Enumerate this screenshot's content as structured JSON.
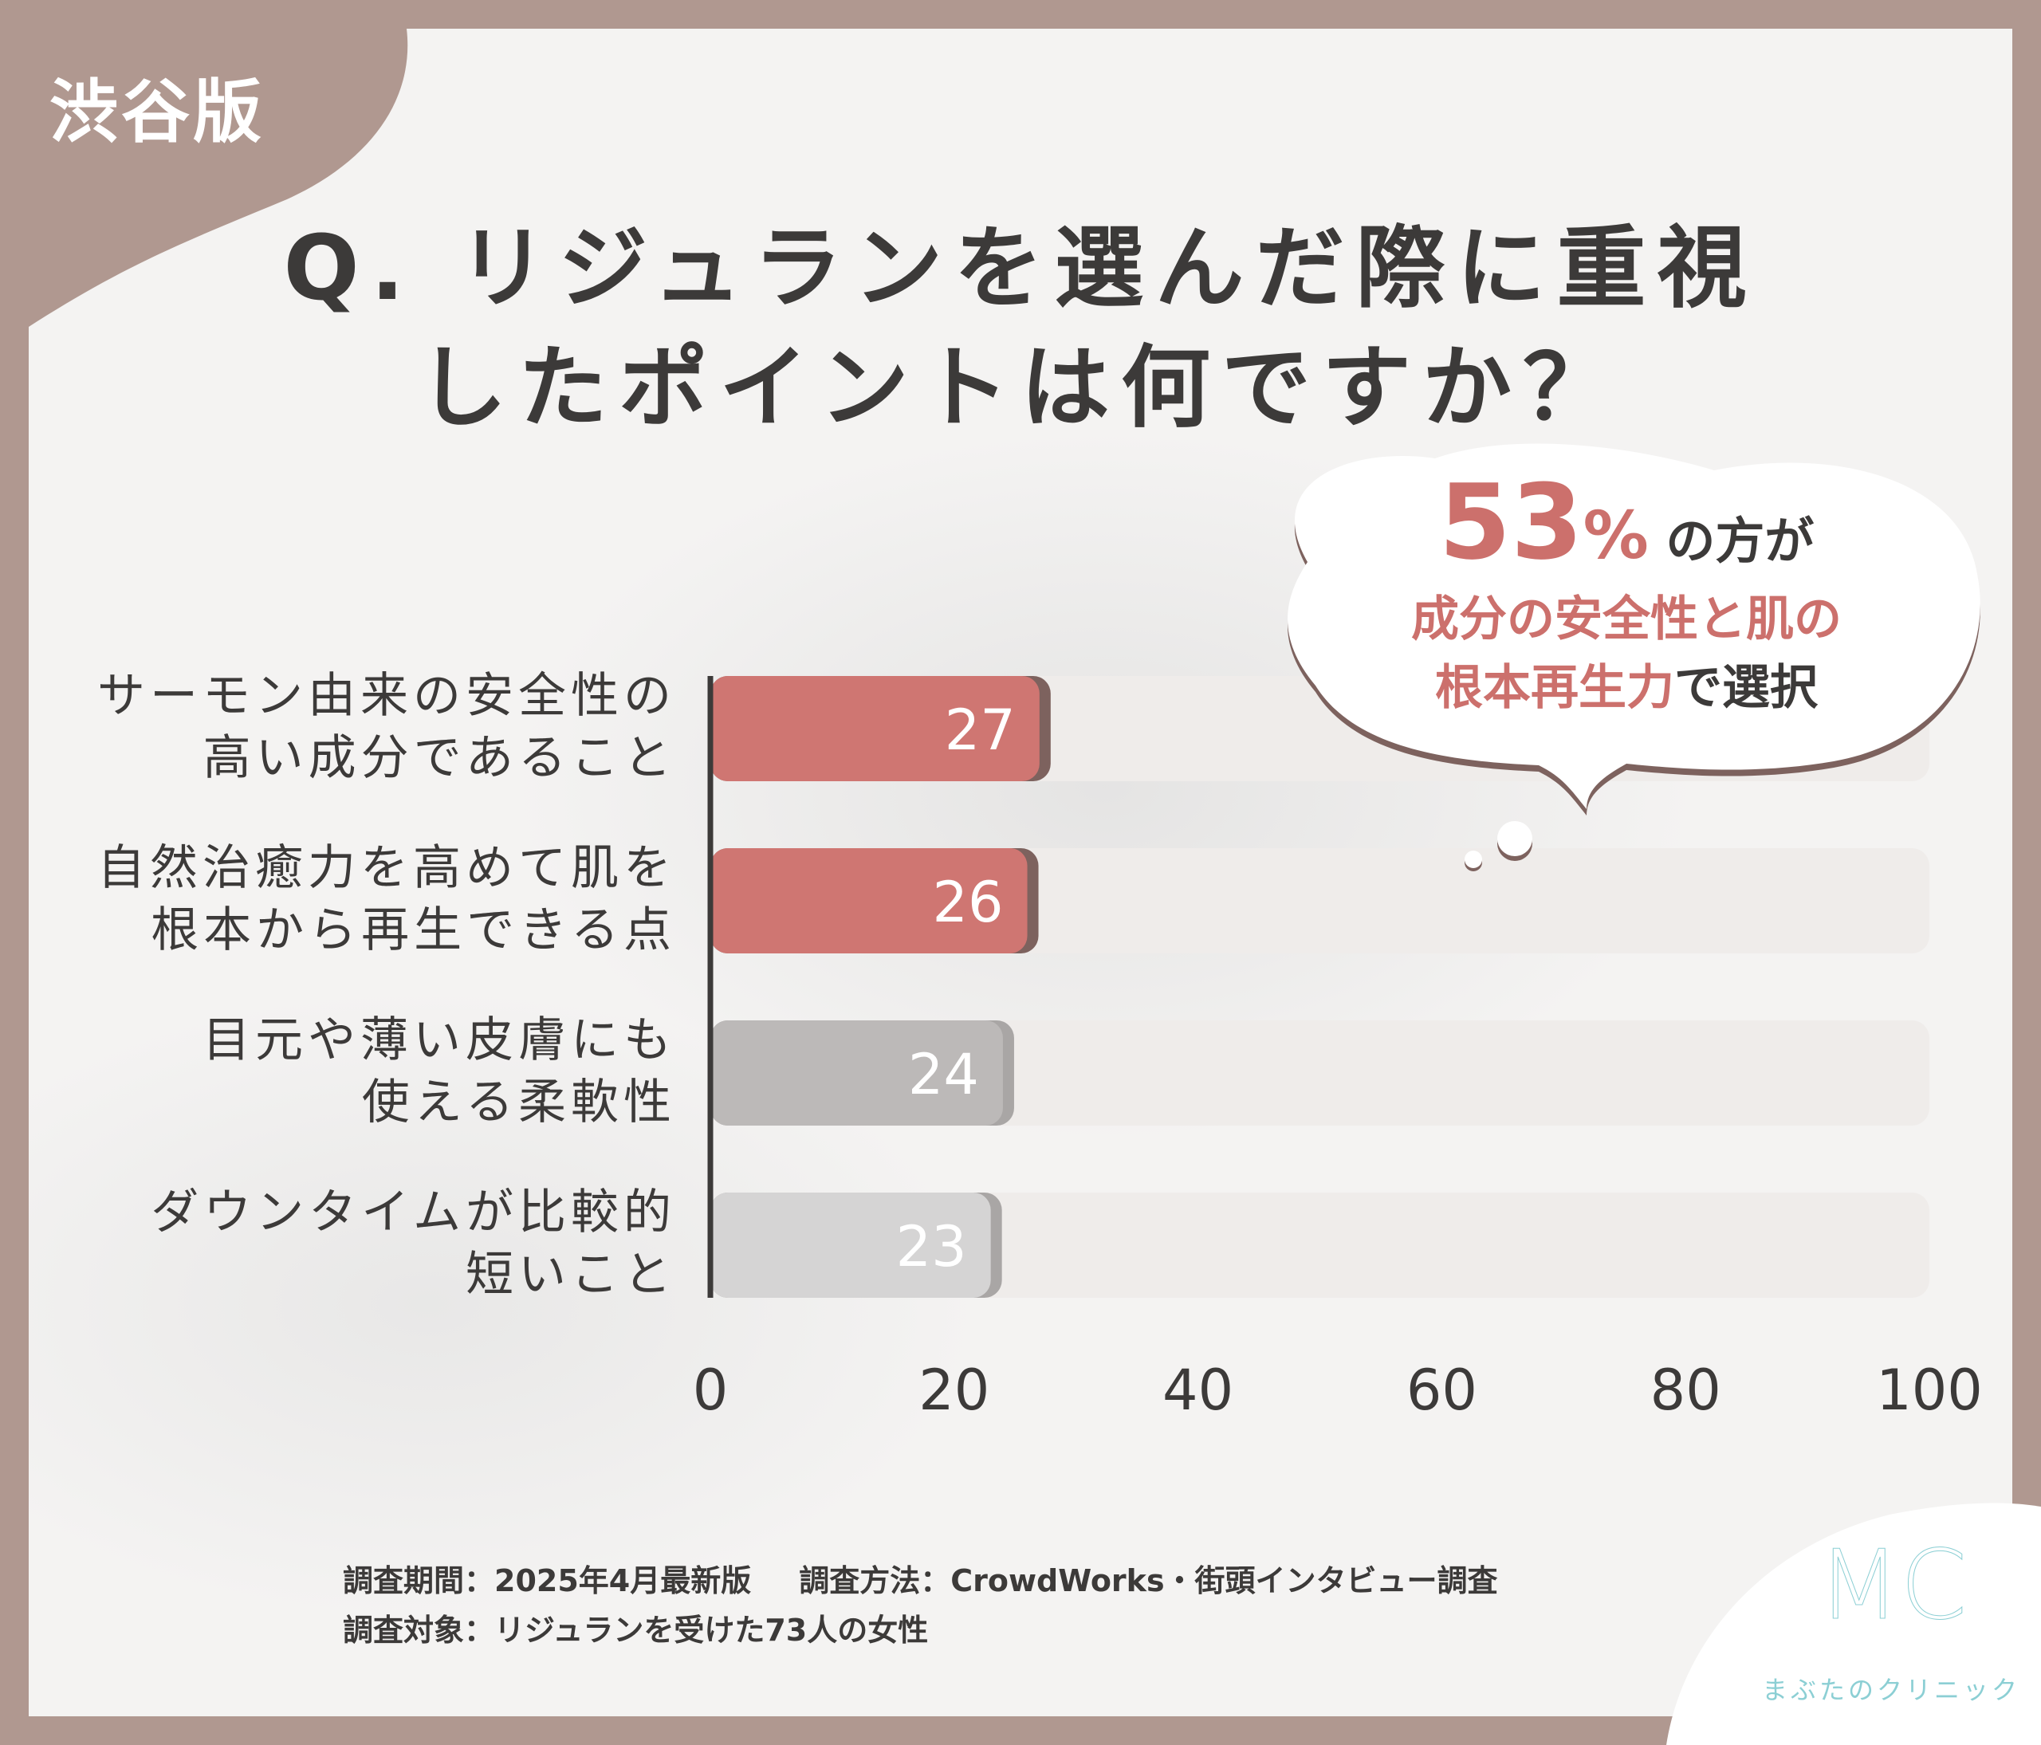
{
  "badge": "渋谷版",
  "title": {
    "line1": "Q. リジュランを選んだ際に重視",
    "line2": "したポイントは何ですか？"
  },
  "callout": {
    "percent": "53",
    "percent_sign": "%",
    "suffix": "の方が",
    "line2": "成分の安全性と肌の",
    "line3_accent": "根本再生力",
    "line3_rest": "で選択"
  },
  "chart_data": {
    "type": "bar",
    "orientation": "horizontal",
    "categories": [
      [
        "サーモン由来の安全性の",
        "高い成分であること"
      ],
      [
        "自然治癒力を高めて肌を",
        "根本から再生できる点"
      ],
      [
        "目元や薄い皮膚にも",
        "使える柔軟性"
      ],
      [
        "ダウンタイムが比較的",
        "短いこと"
      ]
    ],
    "values": [
      27,
      26,
      24,
      23
    ],
    "value_labels": [
      "27",
      "26",
      "24",
      "23"
    ],
    "xlim": [
      0,
      100
    ],
    "xticks": [
      "0",
      "20",
      "40",
      "60",
      "80",
      "100"
    ],
    "grid": false,
    "colors": {
      "highlight": "#cf7672",
      "highlight_shadow": "#7d625e",
      "neutral_dark": "#bcb9b8",
      "neutral_light": "#d5d4d4",
      "neutral_shadow": "#a9a6a5",
      "track": "#efecea"
    },
    "highlight_indices": [
      0,
      1
    ]
  },
  "footer": {
    "period": "調査期間：2025年4月最新版",
    "method": "調査方法：CrowdWorks・街頭インタビュー調査",
    "target": "調査対象：リジュランを受けた73人の女性"
  },
  "logo": {
    "mark": "MC",
    "name": "まぶたのクリニック",
    "color": "#8ccfd4"
  }
}
